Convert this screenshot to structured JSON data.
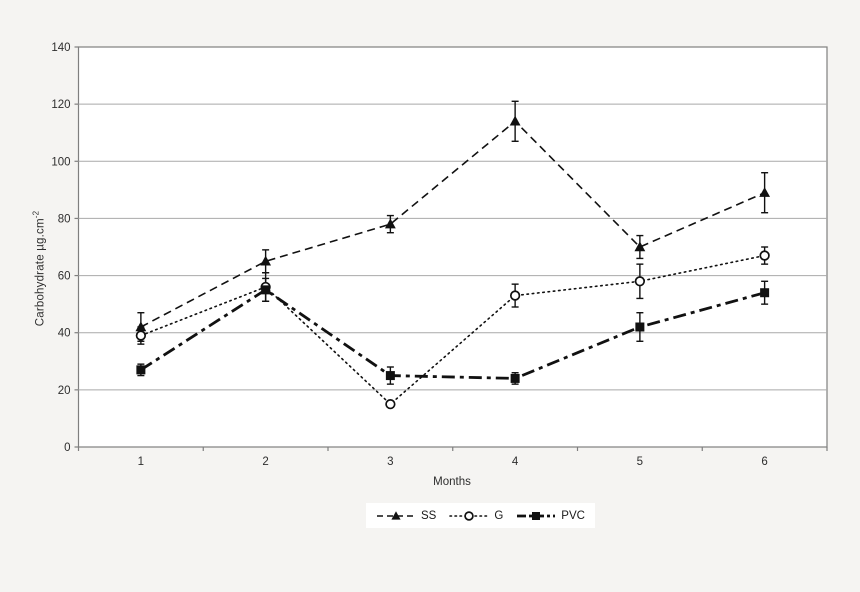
{
  "figure": {
    "background_color": "#f5f4f2",
    "plot_background_color": "#ffffff",
    "axis_color": "#7f7f7f",
    "gridline_color": "#a9a9a9",
    "text_color": "#2e2e2e",
    "series_color": "#111111"
  },
  "chart_data": {
    "type": "line",
    "title": "",
    "xlabel": "Months",
    "ylabel": "Carbohydrate µg.cm⁻²",
    "ylabel_main": "Carbohydrate µg.cm",
    "ylabel_superscript": "-2",
    "categories": [
      "1",
      "2",
      "3",
      "4",
      "5",
      "6"
    ],
    "yticks": [
      "0",
      "20",
      "40",
      "60",
      "80",
      "100",
      "120",
      "140"
    ],
    "ylim": [
      0,
      140
    ],
    "ytick_step": 20,
    "grid": "horizontal",
    "error_bars": true,
    "legend_position": "bottom-center",
    "series": [
      {
        "name": "SS",
        "marker": "filled-triangle",
        "line_style": "dashed",
        "line_width": 1.6,
        "values": [
          42,
          65,
          78,
          114,
          70,
          89
        ],
        "errors": [
          5,
          4,
          3,
          7,
          4,
          7
        ]
      },
      {
        "name": "G",
        "marker": "open-circle",
        "line_style": "dotted",
        "line_width": 1.6,
        "values": [
          39,
          56,
          15,
          53,
          58,
          67
        ],
        "errors": [
          3,
          5,
          1,
          4,
          6,
          3
        ]
      },
      {
        "name": "PVC",
        "marker": "filled-square",
        "line_style": "dash-dot",
        "line_width": 2.8,
        "values": [
          27,
          55,
          25,
          24,
          42,
          54
        ],
        "errors": [
          2,
          4,
          3,
          2,
          5,
          4
        ]
      }
    ]
  }
}
